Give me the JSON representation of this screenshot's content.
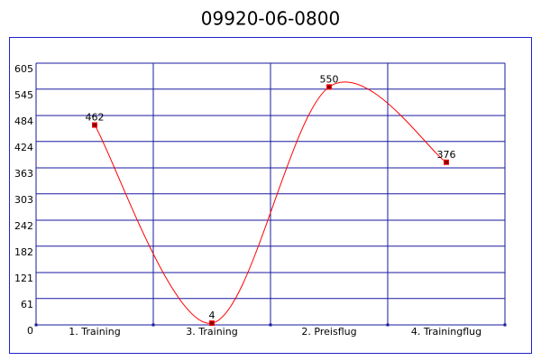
{
  "chart_data": {
    "type": "line",
    "title": "09920-06-0800",
    "categories": [
      "1. Training",
      "3. Training",
      "2. Preisflug",
      "4. Trainingflug"
    ],
    "series": [
      {
        "values": [
          462,
          4,
          550,
          376
        ],
        "color": "#ff0000"
      }
    ],
    "ylim": [
      0,
      605
    ],
    "yticks": [
      0,
      61,
      121,
      182,
      242,
      303,
      363,
      424,
      484,
      545,
      605
    ],
    "grid": true,
    "smooth": true
  }
}
